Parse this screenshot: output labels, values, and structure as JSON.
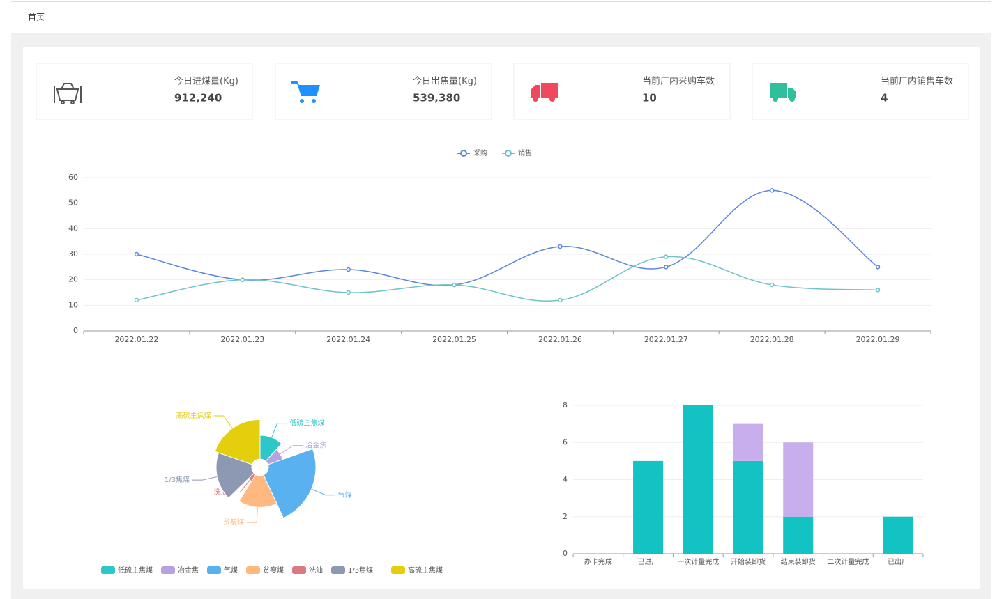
{
  "breadcrumb": "首页",
  "stats": [
    {
      "label": "今日进煤量(Kg)",
      "value": "912,240"
    },
    {
      "label": "今日出焦量(Kg)",
      "value": "539,380"
    },
    {
      "label": "当前厂内采购车数",
      "value": "10"
    },
    {
      "label": "当前厂内销售车数",
      "value": "4"
    }
  ],
  "chart_data": [
    {
      "type": "line",
      "smooth": true,
      "legend": "top",
      "categories": [
        "2022.01.22",
        "2022.01.23",
        "2022.01.24",
        "2022.01.25",
        "2022.01.26",
        "2022.01.27",
        "2022.01.28",
        "2022.01.29"
      ],
      "series": [
        {
          "name": "采购",
          "color": "#5b85e0",
          "values": [
            30,
            20,
            24,
            18,
            33,
            25,
            55,
            25
          ]
        },
        {
          "name": "销售",
          "color": "#6cc3c8",
          "values": [
            12,
            20,
            15,
            18,
            12,
            29,
            18,
            16
          ]
        }
      ],
      "ylim": [
        0,
        60
      ],
      "yticks": [
        0,
        10,
        20,
        30,
        40,
        50,
        60
      ],
      "grid": true
    },
    {
      "type": "pie",
      "rose": true,
      "legend": "bottom",
      "categories": [
        "低硫主焦煤",
        "冶金焦",
        "气煤",
        "贫瘦煤",
        "洗油",
        "1/3焦煤",
        "高硫主焦煤"
      ],
      "values": [
        30,
        20,
        60,
        40,
        10,
        45,
        50
      ],
      "colors": [
        "#2ec7c9",
        "#b6a2de",
        "#5ab1ef",
        "#ffb980",
        "#d87a80",
        "#8d98b3",
        "#e5cf0d"
      ]
    },
    {
      "type": "bar",
      "stacked": true,
      "categories": [
        "办卡完成",
        "已进厂",
        "一次计量完成",
        "开始装卸货",
        "结束装卸货",
        "二次计量完成",
        "已出厂"
      ],
      "series": [
        {
          "color": "#13c2c2",
          "values": [
            0,
            5,
            8,
            5,
            2,
            0,
            2
          ]
        },
        {
          "color": "#c9aeee",
          "values": [
            0,
            0,
            0,
            2,
            4,
            0,
            0
          ]
        }
      ],
      "ylim": [
        0,
        8
      ],
      "yticks": [
        0,
        2,
        4,
        6,
        8
      ],
      "grid": true
    }
  ]
}
